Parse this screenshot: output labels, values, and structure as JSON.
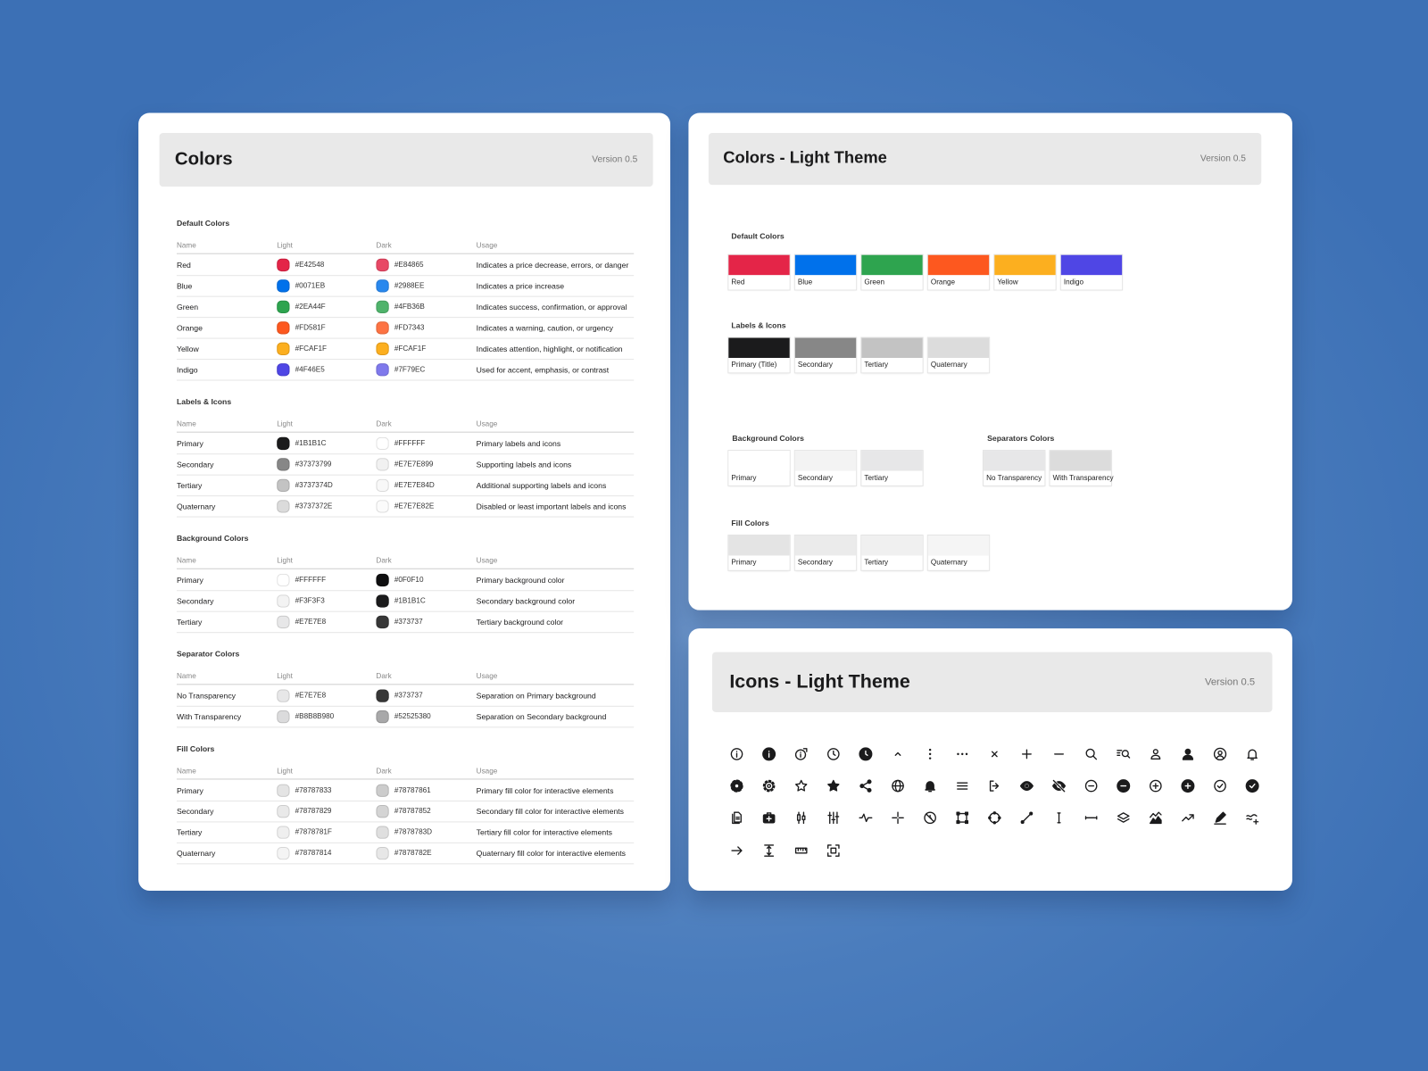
{
  "colors": {
    "title": "Colors",
    "version": "Version 0.5",
    "sections": [
      {
        "title": "Default Colors",
        "columns": [
          "Name",
          "Light",
          "Dark",
          "Usage"
        ],
        "rows": [
          [
            "Red",
            "#E42548",
            "#E84865",
            "Indicates a price decrease, errors, or danger"
          ],
          [
            "Blue",
            "#0071EB",
            "#2988EE",
            "Indicates a price increase"
          ],
          [
            "Green",
            "#2EA44F",
            "#4FB36B",
            "Indicates success, confirmation, or approval"
          ],
          [
            "Orange",
            "#FD581F",
            "#FD7343",
            "Indicates a warning, caution, or urgency"
          ],
          [
            "Yellow",
            "#FCAF1F",
            "#FCAF1F",
            "Indicates attention, highlight, or notification"
          ],
          [
            "Indigo",
            "#4F46E5",
            "#7F79EC",
            "Used for accent, emphasis, or contrast"
          ]
        ]
      },
      {
        "title": "Labels & Icons",
        "columns": [
          "Name",
          "Light",
          "Dark",
          "Usage"
        ],
        "rows": [
          [
            "Primary",
            "#1B1B1C",
            "#FFFFFF",
            "Primary labels and icons"
          ],
          [
            "Secondary",
            "#37373799",
            "#E7E7E899",
            "Supporting labels and icons"
          ],
          [
            "Tertiary",
            "#3737374D",
            "#E7E7E84D",
            "Additional supporting labels and icons"
          ],
          [
            "Quaternary",
            "#3737372E",
            "#E7E7E82E",
            "Disabled or least important labels and icons"
          ]
        ]
      },
      {
        "title": "Background Colors",
        "columns": [
          "Name",
          "Light",
          "Dark",
          "Usage"
        ],
        "rows": [
          [
            "Primary",
            "#FFFFFF",
            "#0F0F10",
            "Primary background color"
          ],
          [
            "Secondary",
            "#F3F3F3",
            "#1B1B1C",
            "Secondary background color"
          ],
          [
            "Tertiary",
            "#E7E7E8",
            "#373737",
            "Tertiary background color"
          ]
        ]
      },
      {
        "title": "Separator Colors",
        "columns": [
          "Name",
          "Light",
          "Dark",
          "Usage"
        ],
        "rows": [
          [
            "No Transparency",
            "#E7E7E8",
            "#373737",
            "Separation on Primary background"
          ],
          [
            "With Transparency",
            "#B8B8B980",
            "#52525380",
            "Separation on Secondary background"
          ]
        ]
      },
      {
        "title": "Fill Colors",
        "columns": [
          "Name",
          "Light",
          "Dark",
          "Usage"
        ],
        "rows": [
          [
            "Primary",
            "#78787833",
            "#78787861",
            "Primary fill color for interactive elements"
          ],
          [
            "Secondary",
            "#78787829",
            "#78787852",
            "Secondary fill color for interactive elements"
          ],
          [
            "Tertiary",
            "#7878781F",
            "#7878783D",
            "Tertiary fill color for interactive elements"
          ],
          [
            "Quaternary",
            "#78787814",
            "#7878782E",
            "Quaternary fill color for interactive elements"
          ]
        ]
      }
    ]
  },
  "light_theme": {
    "title": "Colors - Light Theme",
    "version": "Version 0.5",
    "groups": [
      {
        "title": "Default Colors",
        "swatches": [
          {
            "name": "Red",
            "color": "#E42548"
          },
          {
            "name": "Blue",
            "color": "#0071EB"
          },
          {
            "name": "Green",
            "color": "#2EA44F"
          },
          {
            "name": "Orange",
            "color": "#FD581F"
          },
          {
            "name": "Yellow",
            "color": "#FCAF1F"
          },
          {
            "name": "Indigo",
            "color": "#4F46E5"
          }
        ]
      },
      {
        "title": "Labels & Icons",
        "swatches": [
          {
            "name": "Primary (Title)",
            "color": "#1B1B1C"
          },
          {
            "name": "Secondary",
            "color": "#878787"
          },
          {
            "name": "Tertiary",
            "color": "#C3C3C3"
          },
          {
            "name": "Quaternary",
            "color": "#DCDCDC"
          }
        ]
      },
      {
        "title": "Background Colors",
        "swatches": [
          {
            "name": "Primary",
            "color": "#FFFFFF"
          },
          {
            "name": "Secondary",
            "color": "#F3F3F3"
          },
          {
            "name": "Tertiary",
            "color": "#E7E7E8"
          }
        ]
      },
      {
        "title": "Separators Colors",
        "swatches": [
          {
            "name": "No Transparency",
            "color": "#E7E7E8"
          },
          {
            "name": "With Transparency",
            "color": "#DCDCDC"
          }
        ]
      },
      {
        "title": "Fill Colors",
        "swatches": [
          {
            "name": "Primary",
            "color": "#E4E4E4"
          },
          {
            "name": "Secondary",
            "color": "#EBEBEB"
          },
          {
            "name": "Tertiary",
            "color": "#F0F0F0"
          },
          {
            "name": "Quaternary",
            "color": "#F5F5F5"
          }
        ]
      }
    ]
  },
  "icons": {
    "title": "Icons - Light Theme",
    "version": "Version 0.5"
  }
}
